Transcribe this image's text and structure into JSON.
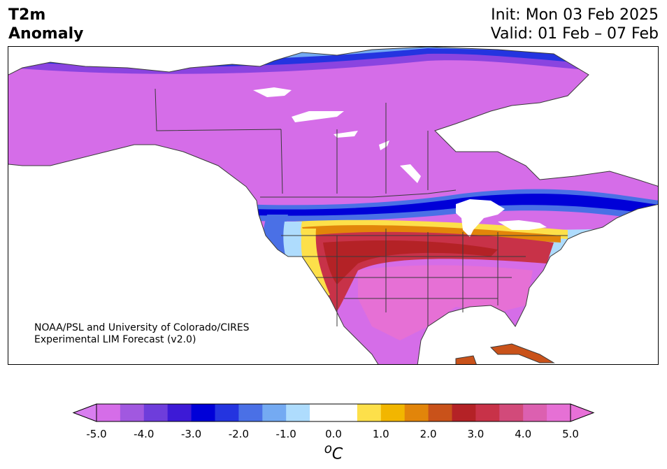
{
  "header": {
    "title_line1": "T2m",
    "title_line2": "Anomaly",
    "init": "Init: Mon 03 Feb 2025",
    "valid": "Valid: 01 Feb – 07 Feb"
  },
  "credit": {
    "line1": "NOAA/PSL and University of Colorado/CIRES",
    "line2": "Experimental LIM Forecast (v2.0)"
  },
  "colorbar": {
    "unit_base": "C",
    "unit_sup": "o",
    "ticks": [
      "-5.0",
      "-4.0",
      "-3.0",
      "-2.0",
      "-1.0",
      "0.0",
      "1.0",
      "2.0",
      "3.0",
      "4.0",
      "5.0"
    ],
    "colors": [
      "#d56de8",
      "#a158e0",
      "#6e3ddb",
      "#3d1ad6",
      "#0000d8",
      "#2434e0",
      "#4a70e6",
      "#74aaf2",
      "#aedcfd",
      "#ffffff",
      "#ffffff",
      "#fde04a",
      "#f2b600",
      "#e2850a",
      "#c9521a",
      "#b42226",
      "#c83248",
      "#d24a7a",
      "#dc60b0",
      "#e670d5"
    ],
    "under_color": "#d97ef0",
    "over_color": "#e870d8"
  }
}
